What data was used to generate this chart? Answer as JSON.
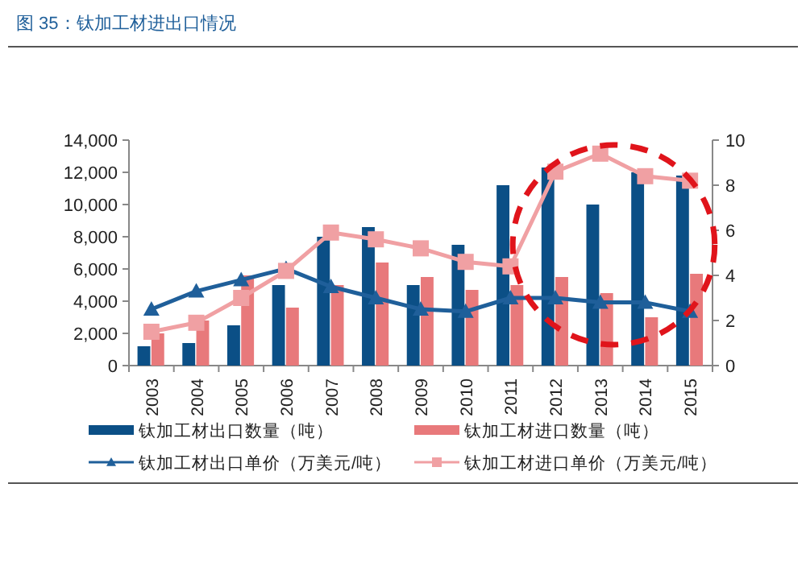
{
  "chart_data": {
    "type": "bar",
    "title": "图 35：钛加工材进出口情况",
    "categories": [
      "2003",
      "2004",
      "2005",
      "2006",
      "2007",
      "2008",
      "2009",
      "2010",
      "2011",
      "2012",
      "2013",
      "2014",
      "2015"
    ],
    "series": [
      {
        "name": "钛加工材出口数量（吨）",
        "color": "#0b4f86",
        "values": [
          1200,
          1400,
          2500,
          5000,
          8000,
          8600,
          5000,
          7500,
          11200,
          12300,
          10000,
          12000,
          11800
        ]
      },
      {
        "name": "钛加工材进口数量（吨）",
        "color": "#e8797b",
        "values": [
          2000,
          2800,
          5600,
          3600,
          5000,
          6400,
          5500,
          4700,
          5000,
          5500,
          4500,
          3000,
          5700
        ]
      },
      {
        "name": "钛加工材出口单价（万美元/吨）",
        "type": "line",
        "axis": "y2",
        "marker": "triangle",
        "color": "#1f5f9a",
        "values": [
          2.5,
          3.3,
          3.8,
          4.3,
          3.5,
          3.0,
          2.5,
          2.4,
          3.0,
          3.0,
          2.8,
          2.8,
          2.4
        ]
      },
      {
        "name": "钛加工材进口单价（万美元/吨）",
        "type": "line",
        "axis": "y2",
        "marker": "square",
        "color": "#f0a0a3",
        "values": [
          1.5,
          1.9,
          3.0,
          4.2,
          5.9,
          5.6,
          5.2,
          4.6,
          4.4,
          8.6,
          9.4,
          8.4,
          8.2
        ]
      }
    ],
    "ylim": [
      0,
      14000
    ],
    "yticks": [
      {
        "value": 0,
        "label": "0"
      },
      {
        "value": 2000,
        "label": "2,000"
      },
      {
        "value": 4000,
        "label": "4,000"
      },
      {
        "value": 6000,
        "label": "6,000"
      },
      {
        "value": 8000,
        "label": "8,000"
      },
      {
        "value": 10000,
        "label": "10,000"
      },
      {
        "value": 12000,
        "label": "12,000"
      },
      {
        "value": 14000,
        "label": "14,000"
      }
    ],
    "y2lim": [
      0,
      10
    ],
    "y2ticks": [
      0,
      2,
      4,
      6,
      8,
      10
    ],
    "legend": "bottom"
  }
}
